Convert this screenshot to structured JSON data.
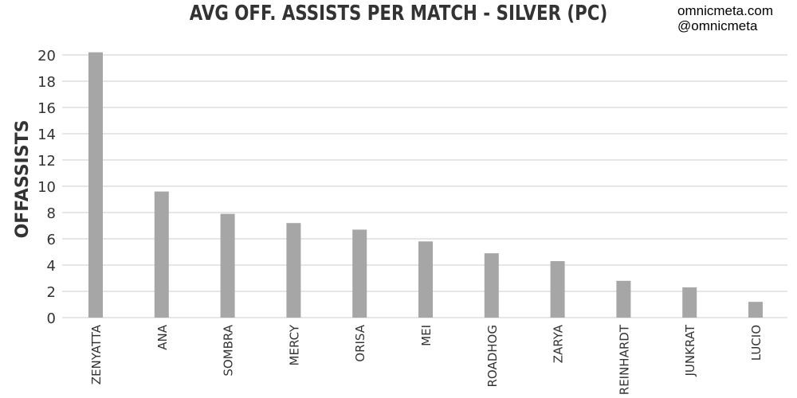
{
  "watermark": {
    "site": "omnicmeta.com",
    "handle": "@omnicmeta"
  },
  "chart_data": {
    "type": "bar",
    "title": "AVG OFF. ASSISTS PER MATCH - SILVER (PC)",
    "xlabel": "",
    "ylabel": "OFFASSISTS",
    "ylim": [
      0,
      20
    ],
    "yticks": [
      0,
      2,
      4,
      6,
      8,
      10,
      12,
      14,
      16,
      18,
      20
    ],
    "grid": true,
    "categories": [
      "ZENYATTA",
      "ANA",
      "SOMBRA",
      "MERCY",
      "ORISA",
      "MEI",
      "ROADHOG",
      "ZARYA",
      "REINHARDT",
      "JUNKRAT",
      "LUCIO"
    ],
    "values": [
      20.2,
      9.6,
      7.9,
      7.2,
      6.7,
      5.8,
      4.9,
      4.3,
      2.8,
      2.3,
      1.2
    ],
    "bar_color": "#a6a6a6",
    "grid_color": "#cccccc"
  }
}
